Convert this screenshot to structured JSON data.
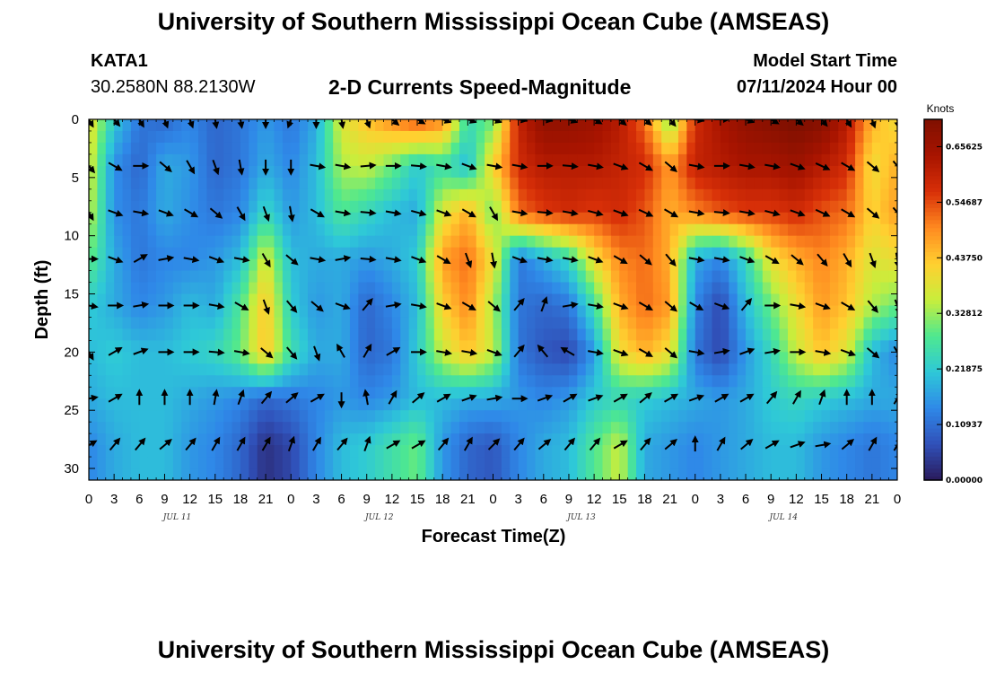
{
  "page": {
    "title": "University of Southern Mississippi Ocean Cube (AMSEAS)",
    "station": "KATA1",
    "coordinates": "30.2580N  88.2130W",
    "subtitle": "2-D Currents Speed-Magnitude",
    "model_start_label": "Model Start Time",
    "model_start_value": "07/11/2024 Hour 00",
    "bottom_title": "University of Southern Mississippi Ocean Cube (AMSEAS)"
  },
  "colors": {
    "palette": [
      "#2a1a5a",
      "#3050b8",
      "#2f88e8",
      "#2ec8d8",
      "#4ee890",
      "#c8ee3c",
      "#ffd030",
      "#ff8a20",
      "#d83008",
      "#a81400",
      "#801000"
    ]
  },
  "chart_data": {
    "type": "heatmap",
    "title": "2-D Currents Speed-Magnitude",
    "xlabel": "Forecast Time(Z)",
    "ylabel": "Depth (ft)",
    "x_ticks": [
      "0",
      "3",
      "6",
      "9",
      "12",
      "15",
      "18",
      "21",
      "0",
      "3",
      "6",
      "9",
      "12",
      "15",
      "18",
      "21",
      "0",
      "3",
      "6",
      "9",
      "12",
      "15",
      "18",
      "21",
      "0",
      "3",
      "6",
      "9",
      "12",
      "15",
      "18",
      "21",
      "0"
    ],
    "date_labels": [
      "JUL 11",
      "JUL 12",
      "JUL 13",
      "JUL 14"
    ],
    "date_label_tick_index": [
      3.5,
      11.5,
      19.5,
      27.5
    ],
    "y_ticks": [
      0,
      5,
      10,
      15,
      20,
      25,
      30
    ],
    "ylim": [
      0,
      31
    ],
    "xlim_hours": [
      0,
      96
    ],
    "colorbar": {
      "unit": "Knots",
      "labels": [
        "0.65625",
        "0.54687",
        "0.43750",
        "0.32812",
        "0.21875",
        "0.10937",
        "0.00000"
      ],
      "range": [
        0,
        0.71
      ]
    },
    "depth_levels_ft": [
      0,
      4,
      8,
      12,
      16,
      20,
      24,
      28
    ],
    "times_hours": [
      0,
      3,
      6,
      9,
      12,
      15,
      18,
      21,
      24,
      27,
      30,
      33,
      36,
      39,
      42,
      45,
      48,
      51,
      54,
      57,
      60,
      63,
      66,
      69,
      72,
      75,
      78,
      81,
      84,
      87,
      90,
      93,
      96
    ],
    "speed_knots": [
      [
        0.4,
        0.22,
        0.12,
        0.1,
        0.14,
        0.1,
        0.12,
        0.16,
        0.12,
        0.18,
        0.38,
        0.44,
        0.5,
        0.55,
        0.5,
        0.25,
        0.3,
        0.6,
        0.68,
        0.68,
        0.66,
        0.62,
        0.52,
        0.3,
        0.58,
        0.64,
        0.68,
        0.7,
        0.72,
        0.7,
        0.62,
        0.46,
        0.4
      ],
      [
        0.38,
        0.15,
        0.1,
        0.18,
        0.16,
        0.1,
        0.12,
        0.18,
        0.14,
        0.2,
        0.34,
        0.36,
        0.3,
        0.22,
        0.26,
        0.2,
        0.42,
        0.58,
        0.62,
        0.62,
        0.62,
        0.6,
        0.58,
        0.48,
        0.6,
        0.62,
        0.64,
        0.64,
        0.66,
        0.62,
        0.58,
        0.4,
        0.46
      ],
      [
        0.36,
        0.15,
        0.12,
        0.18,
        0.15,
        0.12,
        0.14,
        0.24,
        0.16,
        0.2,
        0.28,
        0.24,
        0.2,
        0.18,
        0.38,
        0.46,
        0.3,
        0.52,
        0.56,
        0.58,
        0.56,
        0.58,
        0.54,
        0.46,
        0.5,
        0.54,
        0.56,
        0.56,
        0.58,
        0.54,
        0.52,
        0.42,
        0.48
      ],
      [
        0.3,
        0.18,
        0.12,
        0.14,
        0.14,
        0.16,
        0.2,
        0.38,
        0.2,
        0.18,
        0.18,
        0.16,
        0.18,
        0.22,
        0.48,
        0.52,
        0.4,
        0.12,
        0.18,
        0.24,
        0.4,
        0.5,
        0.52,
        0.46,
        0.18,
        0.14,
        0.24,
        0.4,
        0.46,
        0.5,
        0.46,
        0.38,
        0.4
      ],
      [
        0.22,
        0.18,
        0.14,
        0.16,
        0.2,
        0.18,
        0.28,
        0.44,
        0.22,
        0.16,
        0.18,
        0.1,
        0.14,
        0.2,
        0.42,
        0.5,
        0.34,
        0.12,
        0.1,
        0.12,
        0.26,
        0.46,
        0.52,
        0.48,
        0.14,
        0.06,
        0.2,
        0.3,
        0.4,
        0.48,
        0.44,
        0.34,
        0.3
      ],
      [
        0.2,
        0.22,
        0.2,
        0.2,
        0.22,
        0.24,
        0.3,
        0.44,
        0.26,
        0.18,
        0.18,
        0.1,
        0.12,
        0.22,
        0.36,
        0.44,
        0.36,
        0.12,
        0.08,
        0.06,
        0.16,
        0.4,
        0.46,
        0.4,
        0.12,
        0.06,
        0.16,
        0.24,
        0.36,
        0.44,
        0.38,
        0.2,
        0.14
      ],
      [
        0.18,
        0.2,
        0.2,
        0.2,
        0.18,
        0.16,
        0.14,
        0.1,
        0.12,
        0.14,
        0.16,
        0.14,
        0.16,
        0.2,
        0.2,
        0.18,
        0.18,
        0.16,
        0.14,
        0.16,
        0.22,
        0.24,
        0.22,
        0.2,
        0.18,
        0.16,
        0.18,
        0.22,
        0.24,
        0.22,
        0.2,
        0.18,
        0.18
      ],
      [
        0.14,
        0.18,
        0.2,
        0.2,
        0.16,
        0.14,
        0.1,
        0.03,
        0.06,
        0.14,
        0.2,
        0.22,
        0.26,
        0.3,
        0.16,
        0.1,
        0.08,
        0.14,
        0.18,
        0.2,
        0.28,
        0.36,
        0.18,
        0.16,
        0.14,
        0.16,
        0.18,
        0.2,
        0.2,
        0.16,
        0.14,
        0.12,
        0.14
      ]
    ],
    "direction_deg": [
      [
        150,
        140,
        150,
        160,
        160,
        170,
        170,
        180,
        200,
        180,
        170,
        160,
        130,
        120,
        110,
        110,
        110,
        100,
        100,
        110,
        120,
        130,
        130,
        140,
        100,
        90,
        110,
        120,
        130,
        140,
        150,
        160,
        170
      ],
      [
        140,
        120,
        90,
        130,
        150,
        160,
        170,
        180,
        180,
        100,
        100,
        85,
        90,
        95,
        100,
        110,
        100,
        100,
        90,
        95,
        100,
        110,
        120,
        130,
        100,
        90,
        100,
        100,
        110,
        115,
        120,
        130,
        140
      ],
      [
        150,
        110,
        100,
        110,
        120,
        130,
        150,
        160,
        170,
        120,
        100,
        95,
        100,
        105,
        110,
        120,
        150,
        100,
        95,
        100,
        105,
        110,
        115,
        120,
        100,
        95,
        100,
        105,
        110,
        115,
        120,
        130,
        140
      ],
      [
        90,
        110,
        60,
        80,
        100,
        110,
        100,
        150,
        130,
        100,
        80,
        95,
        100,
        110,
        120,
        160,
        170,
        110,
        100,
        100,
        110,
        120,
        130,
        140,
        100,
        100,
        110,
        120,
        130,
        140,
        150,
        160,
        170
      ],
      [
        100,
        90,
        80,
        90,
        90,
        100,
        120,
        160,
        140,
        130,
        110,
        40,
        80,
        100,
        110,
        120,
        130,
        40,
        20,
        80,
        100,
        110,
        120,
        130,
        120,
        110,
        40,
        90,
        100,
        110,
        120,
        140,
        160
      ],
      [
        150,
        60,
        70,
        90,
        90,
        95,
        100,
        130,
        140,
        160,
        330,
        30,
        60,
        90,
        100,
        100,
        110,
        40,
        320,
        300,
        100,
        110,
        120,
        130,
        100,
        80,
        70,
        80,
        90,
        100,
        110,
        130,
        150
      ],
      [
        80,
        60,
        0,
        0,
        0,
        10,
        20,
        40,
        50,
        60,
        180,
        350,
        30,
        50,
        60,
        70,
        80,
        90,
        70,
        60,
        70,
        60,
        50,
        60,
        70,
        60,
        60,
        40,
        30,
        20,
        0,
        0,
        30
      ],
      [
        60,
        40,
        40,
        50,
        40,
        30,
        30,
        30,
        20,
        30,
        40,
        20,
        60,
        60,
        40,
        30,
        45,
        40,
        50,
        40,
        40,
        60,
        40,
        50,
        0,
        30,
        50,
        60,
        70,
        80,
        50,
        30,
        30
      ]
    ]
  }
}
